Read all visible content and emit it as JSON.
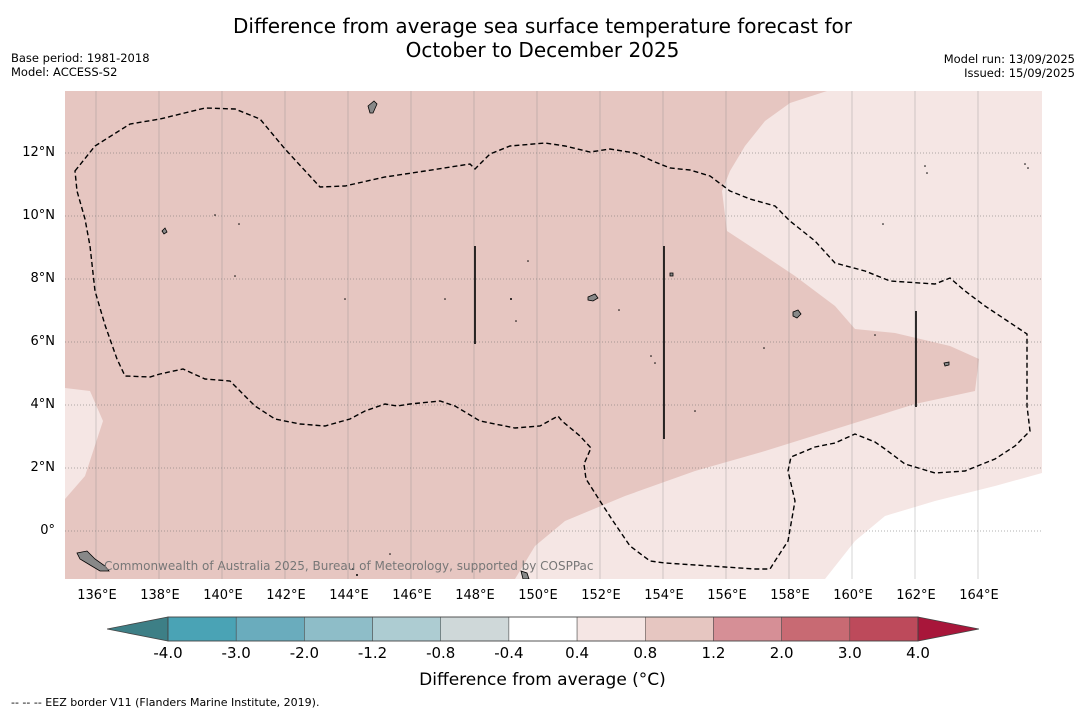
{
  "title_line1": "Difference from average sea surface temperature forecast for",
  "title_line2": "October to December 2025",
  "meta_left": {
    "base_period": "Base period: 1981-2018",
    "model": "Model: ACCESS-S2"
  },
  "meta_right": {
    "model_run": "Model run: 13/09/2025",
    "issued": "Issued: 15/09/2025"
  },
  "copyright": "Commonwealth of Australia 2025, Bureau of Meteorology, supported by COSPPac",
  "lat_labels": [
    "12°N",
    "10°N",
    "8°N",
    "6°N",
    "4°N",
    "2°N",
    "0°"
  ],
  "lon_labels": [
    "136°E",
    "138°E",
    "140°E",
    "142°E",
    "144°E",
    "146°E",
    "148°E",
    "150°E",
    "152°E",
    "154°E",
    "156°E",
    "158°E",
    "160°E",
    "162°E",
    "164°E"
  ],
  "colorbar": {
    "ticks": [
      "-4.0",
      "-3.0",
      "-2.0",
      "-1.2",
      "-0.8",
      "-0.4",
      "0.4",
      "0.8",
      "1.2",
      "2.0",
      "3.0",
      "4.0"
    ],
    "colors": [
      "#3d7f86",
      "#4aa3b5",
      "#6aacbd",
      "#8ebdc8",
      "#adccd2",
      "#cfd8d9",
      "#ffffff",
      "#f5e6e4",
      "#e6c6c1",
      "#d68f96",
      "#c86a73",
      "#bd4a5b",
      "#a8163a"
    ],
    "title": "Difference from average (°C)"
  },
  "footnote": "--  --  -- EEZ border V11 (Flanders Marine Institute, 2019)."
}
